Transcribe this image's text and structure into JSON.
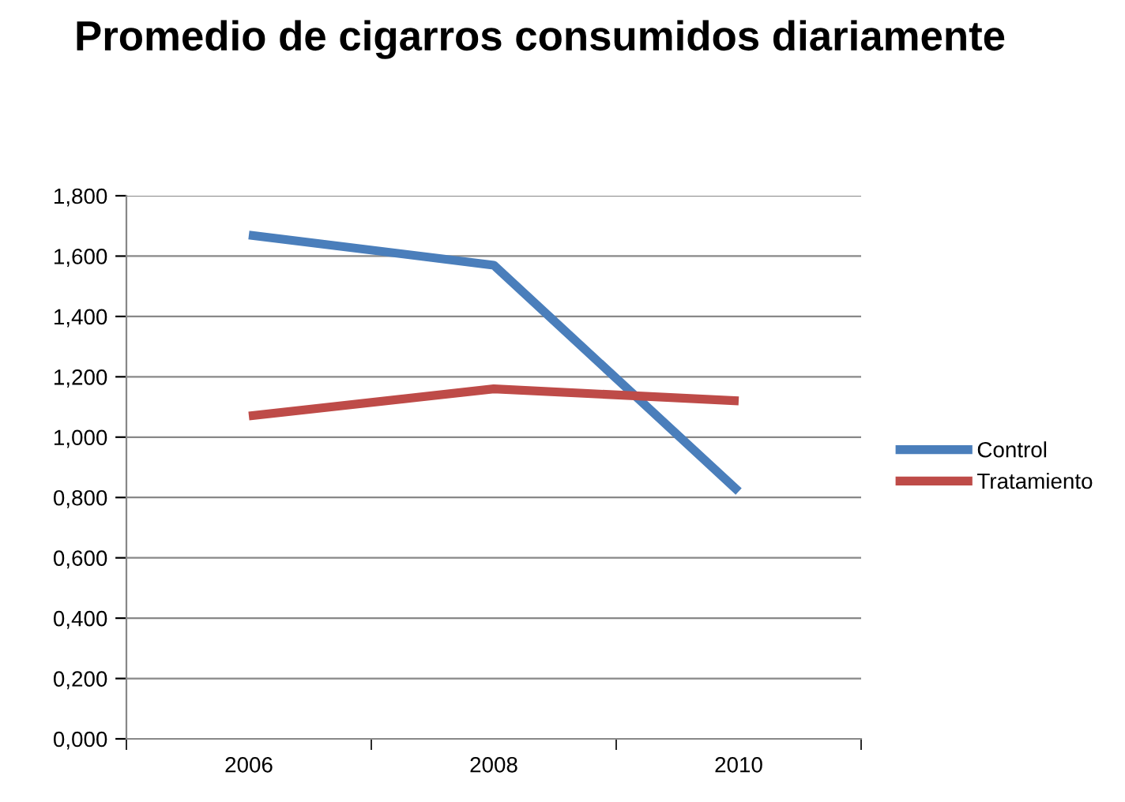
{
  "chart_data": {
    "type": "line",
    "title": "Promedio de cigarros consumidos diariamente",
    "categories": [
      "2006",
      "2008",
      "2010"
    ],
    "series": [
      {
        "name": "Control",
        "color": "#4a7ebb",
        "values": [
          1.67,
          1.57,
          0.82
        ]
      },
      {
        "name": "Tratamiento",
        "color": "#be4b48",
        "values": [
          1.07,
          1.16,
          1.12
        ]
      }
    ],
    "ylim": [
      0,
      1.8
    ],
    "yticks": [
      {
        "value": 0,
        "label": "0,000"
      },
      {
        "value": 0.2,
        "label": "0,200"
      },
      {
        "value": 0.4,
        "label": "0,400"
      },
      {
        "value": 0.6,
        "label": "0,600"
      },
      {
        "value": 0.8,
        "label": "0,800"
      },
      {
        "value": 1.0,
        "label": "1,000"
      },
      {
        "value": 1.2,
        "label": "1,200"
      },
      {
        "value": 1.4,
        "label": "1,400"
      },
      {
        "value": 1.6,
        "label": "1,600"
      },
      {
        "value": 1.8,
        "label": "1,800"
      }
    ],
    "grid": "y",
    "legend": "right",
    "marker": "none",
    "line_style": "solid"
  }
}
